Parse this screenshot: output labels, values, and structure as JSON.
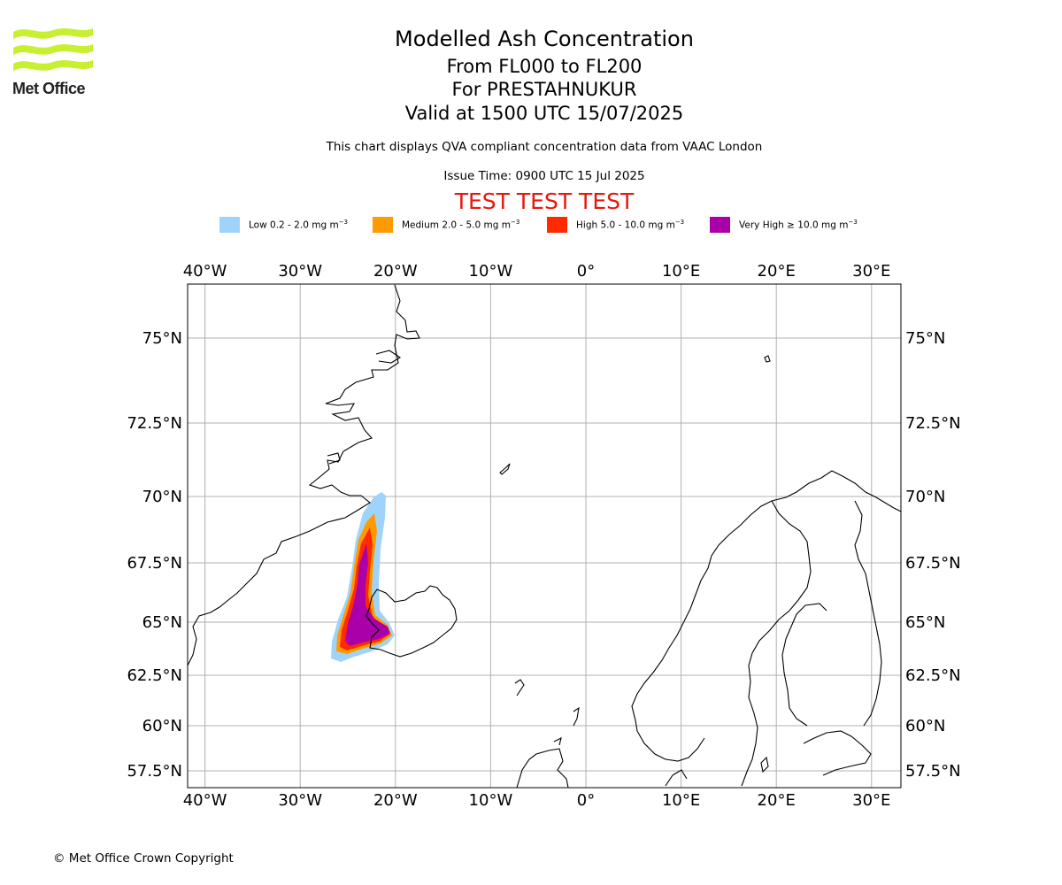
{
  "logo": {
    "text": "Met Office",
    "color": "#c8f032"
  },
  "title": {
    "line1": "Modelled Ash Concentration",
    "line2": "From FL000 to FL200",
    "line3": "For PRESTAHNUKUR",
    "line4": "Valid at 1500 UTC 15/07/2025"
  },
  "subtitle": "This chart displays QVA compliant concentration data from VAAC London",
  "issue_time": "Issue Time: 0900 UTC 15 Jul 2025",
  "test_banner": {
    "text": "TEST TEST TEST",
    "color": "#e8170d"
  },
  "legend": [
    {
      "label": "Low 0.2 - 2.0 mg m",
      "unit_exp": "−3",
      "color": "#9fd3fb"
    },
    {
      "label": "Medium 2.0 - 5.0 mg m",
      "unit_exp": "−3",
      "color": "#ff9a00"
    },
    {
      "label": "High 5.0 - 10.0 mg m",
      "unit_exp": "−3",
      "color": "#ff2a00"
    },
    {
      "label": "Very High ≥ 10.0 mg m",
      "unit_exp": "−3",
      "color": "#aa00aa"
    }
  ],
  "map": {
    "lon_ticks": [
      "40°W",
      "30°W",
      "20°W",
      "10°W",
      "0°",
      "10°E",
      "20°E",
      "30°E"
    ],
    "lat_ticks": [
      "75°N",
      "72.5°N",
      "70°N",
      "67.5°N",
      "65°N",
      "62.5°N",
      "60°N",
      "57.5°N"
    ],
    "lon_values": [
      -40,
      -30,
      -20,
      -10,
      0,
      10,
      20,
      30
    ],
    "lat_values": [
      75,
      72.5,
      70,
      67.5,
      65,
      62.5,
      60,
      57.5
    ],
    "grid": true,
    "gridline_color": "#b0b0b0"
  },
  "copyright": "© Met Office Crown Copyright"
}
